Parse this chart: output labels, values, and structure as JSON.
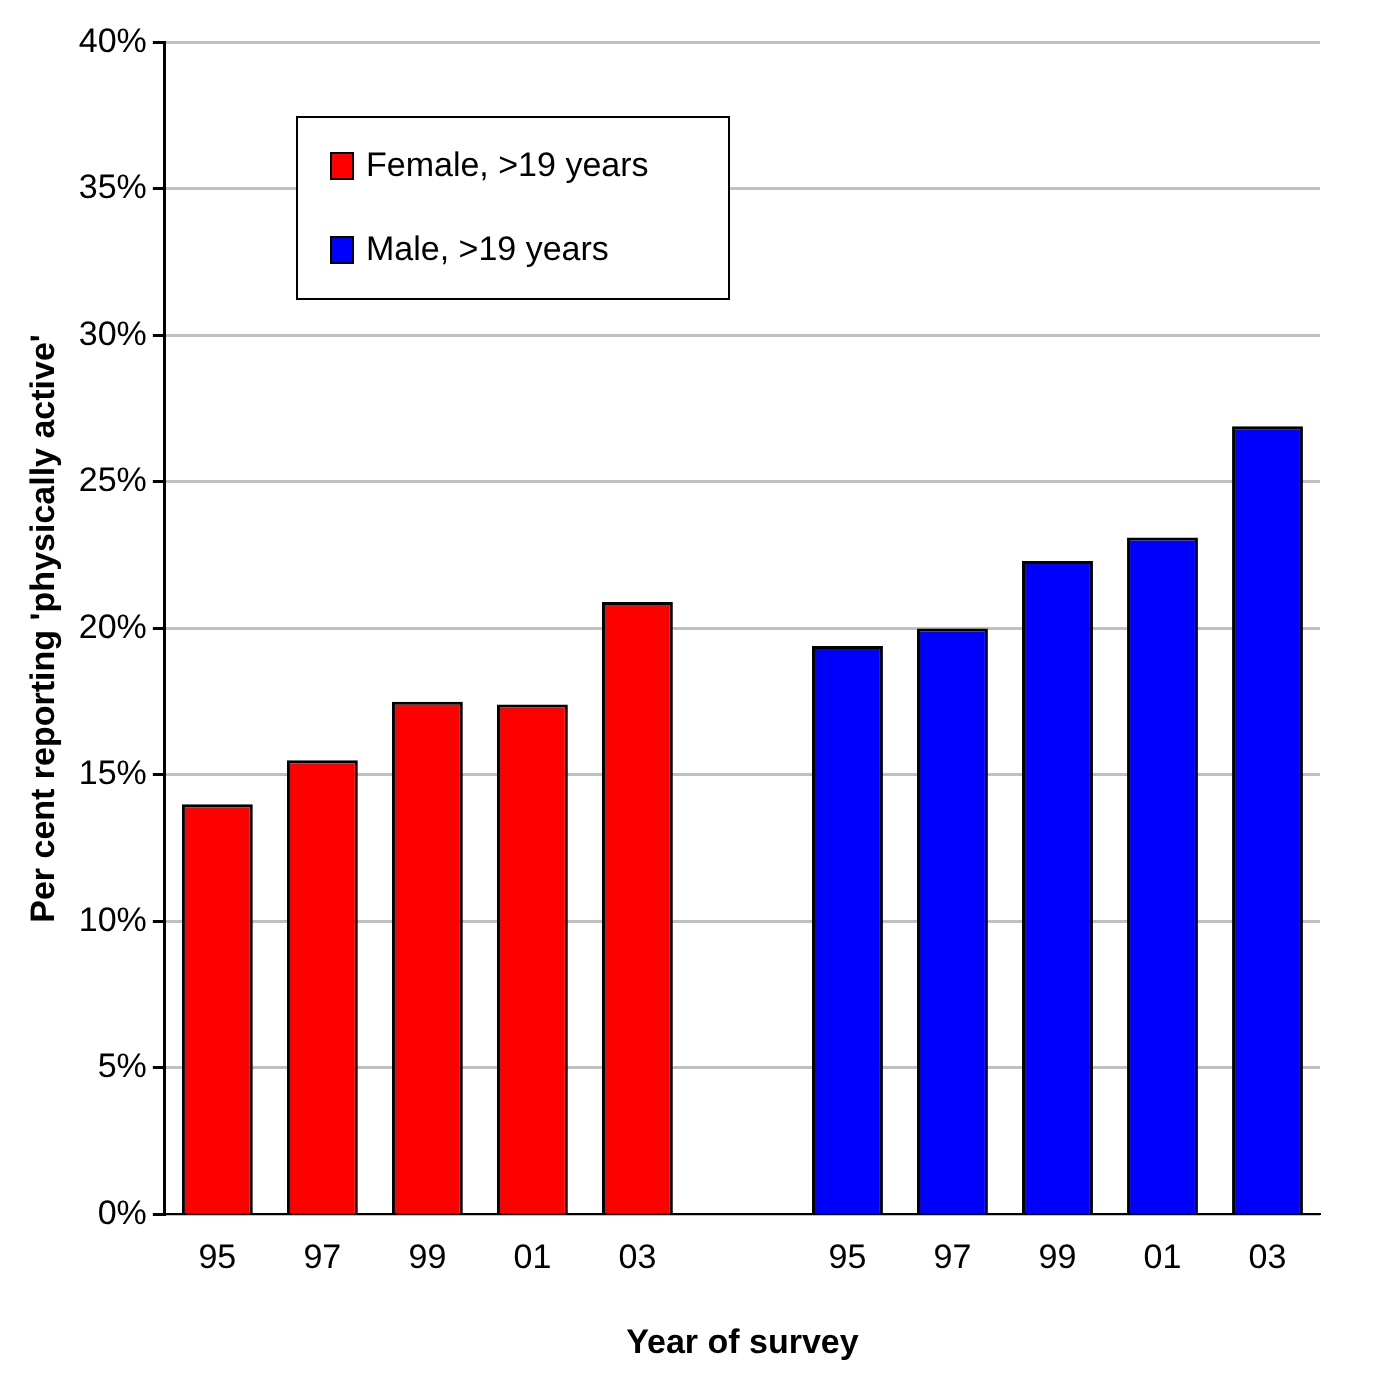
{
  "chart_data": {
    "type": "bar",
    "xlabel": "Year of survey",
    "ylabel": "Per cent reporting 'physically active'",
    "categories": [
      "95",
      "97",
      "99",
      "01",
      "03",
      null,
      "95",
      "97",
      "99",
      "01",
      "03"
    ],
    "series": [
      {
        "name": "Female, >19 years",
        "color": "#ff0000",
        "values": [
          14.0,
          15.5,
          17.5,
          17.4,
          20.9,
          null,
          null,
          null,
          null,
          null,
          null
        ]
      },
      {
        "name": "Male, >19 years",
        "color": "#0000ff",
        "values": [
          null,
          null,
          null,
          null,
          null,
          null,
          19.4,
          20.0,
          22.3,
          23.1,
          26.9
        ]
      }
    ],
    "ylim": [
      0,
      40
    ],
    "yticks": [
      {
        "value": 0,
        "label": "0%"
      },
      {
        "value": 5,
        "label": "5%"
      },
      {
        "value": 10,
        "label": "10%"
      },
      {
        "value": 15,
        "label": "15%"
      },
      {
        "value": 20,
        "label": "20%"
      },
      {
        "value": 25,
        "label": "25%"
      },
      {
        "value": 30,
        "label": "30%"
      },
      {
        "value": 35,
        "label": "35%"
      },
      {
        "value": 40,
        "label": "40%"
      }
    ],
    "grid": "y",
    "legend": "top left"
  }
}
